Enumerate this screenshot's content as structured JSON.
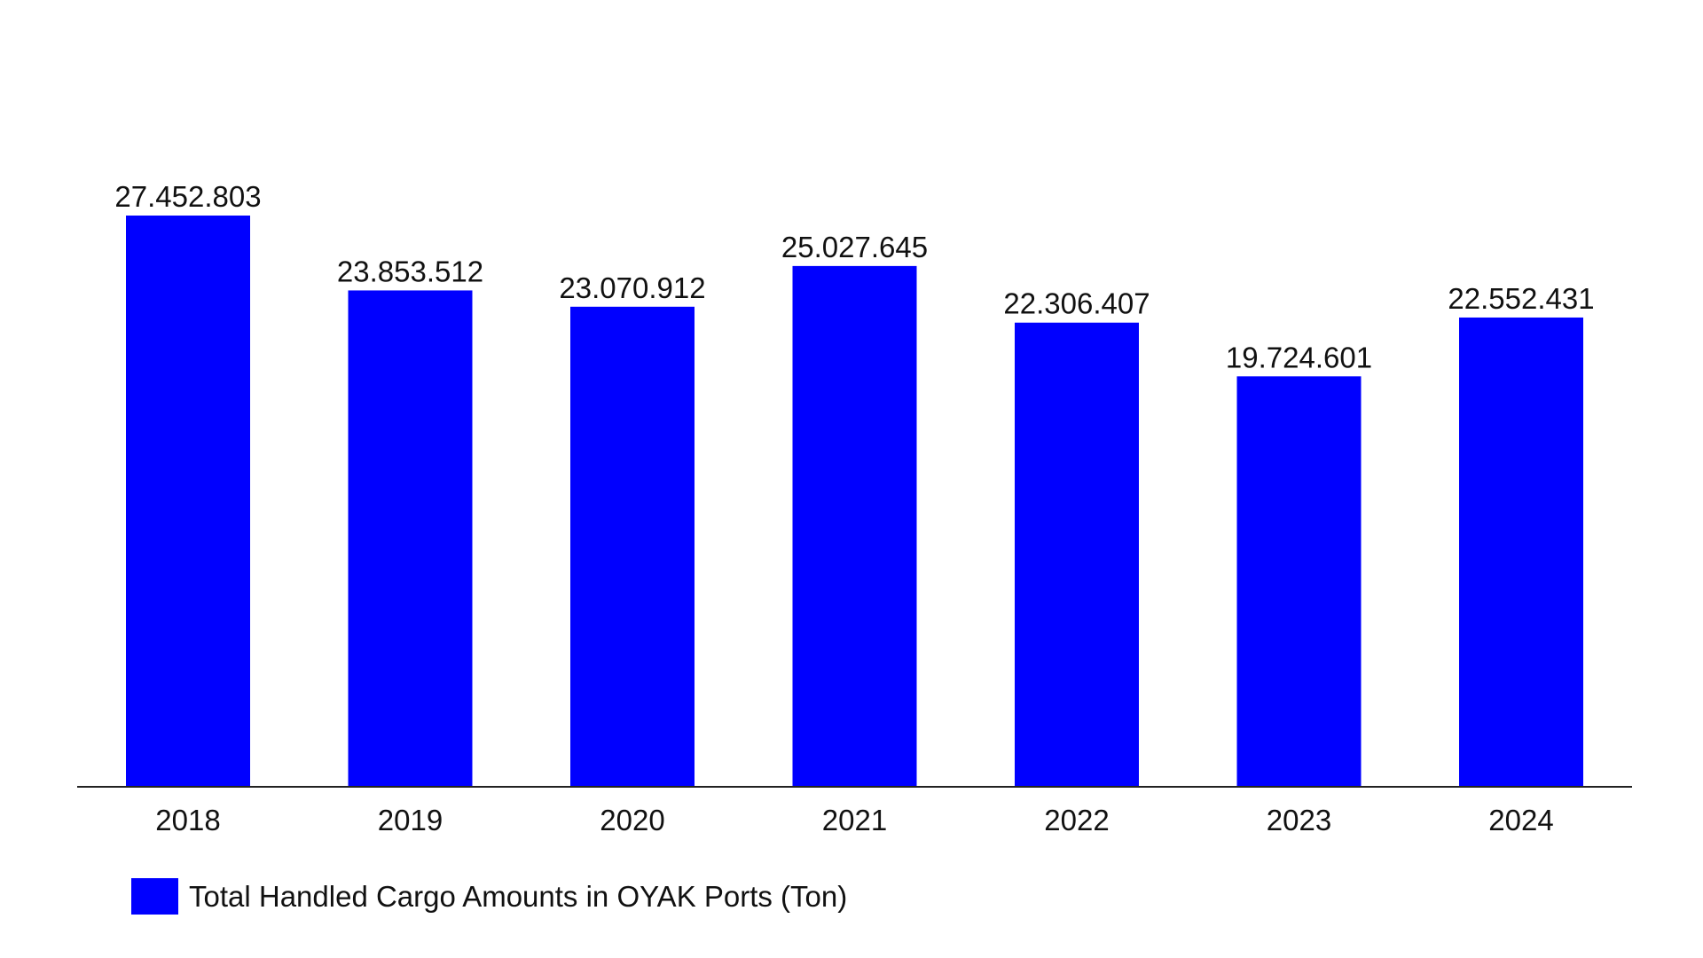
{
  "chart_data": {
    "type": "bar",
    "categories": [
      "2018",
      "2019",
      "2020",
      "2021",
      "2022",
      "2023",
      "2024"
    ],
    "series": [
      {
        "name": "Total Handled Cargo Amounts in OYAK Ports (Ton)",
        "values": [
          27452803,
          23853512,
          23070912,
          25027645,
          22306407,
          19724601,
          22552431
        ],
        "value_labels": [
          "27.452.803",
          "23.853.512",
          "23.070.912",
          "25.027.645",
          "22.306.407",
          "19.724.601",
          "22.552.431"
        ],
        "color": "#0000ff"
      }
    ],
    "title": "",
    "xlabel": "",
    "ylabel": "",
    "ylim": [
      0,
      27452803
    ],
    "grid": false,
    "legend": "bottom-left"
  }
}
